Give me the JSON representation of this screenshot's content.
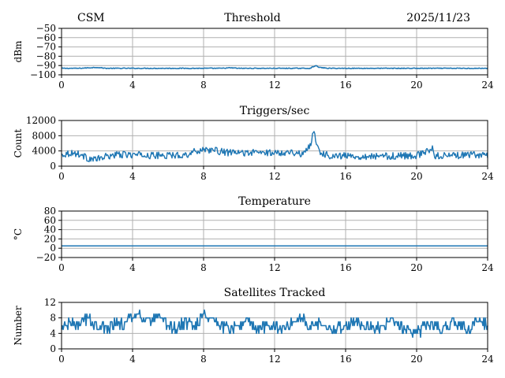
{
  "header": {
    "left": "CSM",
    "center": "Threshold",
    "right": "2025/11/23"
  },
  "colors": {
    "series": "#1f77b4",
    "grid": "#b0b0b0",
    "axis": "#000000"
  },
  "chart_data": [
    {
      "type": "line",
      "title": "",
      "ylabel": "dBm",
      "xlim": [
        0,
        24
      ],
      "ylim": [
        -100,
        -50
      ],
      "xticks": [
        0,
        4,
        8,
        12,
        16,
        20,
        24
      ],
      "xtick_labels": [
        "0",
        "4",
        "8",
        "12",
        "16",
        "20",
        "24"
      ],
      "yticks": [
        -50,
        -60,
        -70,
        -80,
        -90,
        -100
      ],
      "ytick_labels": [
        "−50",
        "−60",
        "−70",
        "−80",
        "−90",
        "−100"
      ],
      "grid": true,
      "series": [
        {
          "x": [
            0,
            1,
            1.5,
            2,
            2.5,
            3,
            4,
            6,
            8,
            9,
            9.5,
            10,
            12,
            14,
            14.3,
            14.5,
            15,
            16,
            18,
            20,
            22,
            24
          ],
          "y": [
            -93,
            -93,
            -92.5,
            -92,
            -93,
            -93,
            -93,
            -93,
            -93,
            -93,
            -92.5,
            -93,
            -93,
            -93,
            -90,
            -92,
            -93,
            -93,
            -93,
            -93,
            -93,
            -93
          ]
        }
      ]
    },
    {
      "type": "line",
      "title": "Triggers/sec",
      "ylabel": "Count",
      "xlim": [
        0,
        24
      ],
      "ylim": [
        0,
        12000
      ],
      "xticks": [
        0,
        4,
        8,
        12,
        16,
        20,
        24
      ],
      "xtick_labels": [
        "0",
        "4",
        "8",
        "12",
        "16",
        "20",
        "24"
      ],
      "yticks": [
        0,
        4000,
        8000,
        12000
      ],
      "ytick_labels": [
        "0",
        "4000",
        "8000",
        "12000"
      ],
      "grid": true,
      "series": [
        {
          "x": [
            0,
            0.5,
            1,
            1.5,
            2,
            2.5,
            3,
            3.5,
            4,
            5,
            6,
            7,
            7.5,
            8,
            8.5,
            9,
            9.5,
            10,
            11,
            12,
            13,
            13.5,
            14,
            14.2,
            14.5,
            15,
            16,
            17,
            18,
            19,
            20,
            20.9,
            21,
            22,
            23,
            24
          ],
          "y": [
            3000,
            3500,
            3200,
            2000,
            1800,
            2500,
            3000,
            3000,
            3000,
            2800,
            2800,
            3000,
            3800,
            4500,
            4200,
            3800,
            3500,
            3500,
            3600,
            3500,
            3800,
            3000,
            5500,
            9000,
            4000,
            2800,
            2700,
            2600,
            2600,
            2700,
            2800,
            4500,
            2800,
            2800,
            2900,
            3000
          ]
        }
      ]
    },
    {
      "type": "line",
      "title": "Temperature",
      "ylabel": "°C",
      "xlim": [
        0,
        24
      ],
      "ylim": [
        -20,
        80
      ],
      "xticks": [
        0,
        4,
        8,
        12,
        16,
        20,
        24
      ],
      "xtick_labels": [
        "0",
        "4",
        "8",
        "12",
        "16",
        "20",
        "24"
      ],
      "yticks": [
        -20,
        0,
        20,
        40,
        60,
        80
      ],
      "ytick_labels": [
        "−20",
        "0",
        "20",
        "40",
        "60",
        "80"
      ],
      "grid": true,
      "series": [
        {
          "x": [
            0,
            24
          ],
          "y": [
            5,
            5
          ]
        }
      ]
    },
    {
      "type": "line",
      "title": "Satellites Tracked",
      "ylabel": "Number",
      "xlim": [
        0,
        24
      ],
      "ylim": [
        0,
        12
      ],
      "xticks": [
        0,
        4,
        8,
        12,
        16,
        20,
        24
      ],
      "xtick_labels": [
        "0",
        "4",
        "8",
        "12",
        "16",
        "20",
        "24"
      ],
      "yticks": [
        0,
        4,
        8,
        12
      ],
      "ytick_labels": [
        "0",
        "4",
        "8",
        "12"
      ],
      "grid": true,
      "series": [
        {
          "x": [
            0,
            0.5,
            1,
            1.5,
            2,
            2.5,
            3,
            3.5,
            4,
            4.5,
            5,
            5.5,
            6,
            6.5,
            7,
            7.5,
            8,
            8.5,
            9,
            9.5,
            10,
            10.5,
            11,
            11.5,
            12,
            12.5,
            13,
            13.5,
            14,
            14.5,
            15,
            15.5,
            16,
            16.5,
            17,
            17.5,
            18,
            18.5,
            19,
            19.5,
            20,
            20.5,
            21,
            21.5,
            22,
            22.5,
            23,
            23.5,
            24
          ],
          "y": [
            5,
            7,
            6,
            8,
            6,
            5,
            7,
            6,
            9,
            8,
            7,
            8,
            6,
            5,
            7,
            6,
            9,
            8,
            6,
            5,
            6,
            7,
            5,
            6,
            6,
            5,
            7,
            8,
            6,
            7,
            6,
            5,
            6,
            7,
            6,
            6,
            5,
            7,
            6,
            5,
            4,
            6,
            6,
            5,
            7,
            6,
            5,
            8,
            6
          ]
        }
      ]
    }
  ]
}
